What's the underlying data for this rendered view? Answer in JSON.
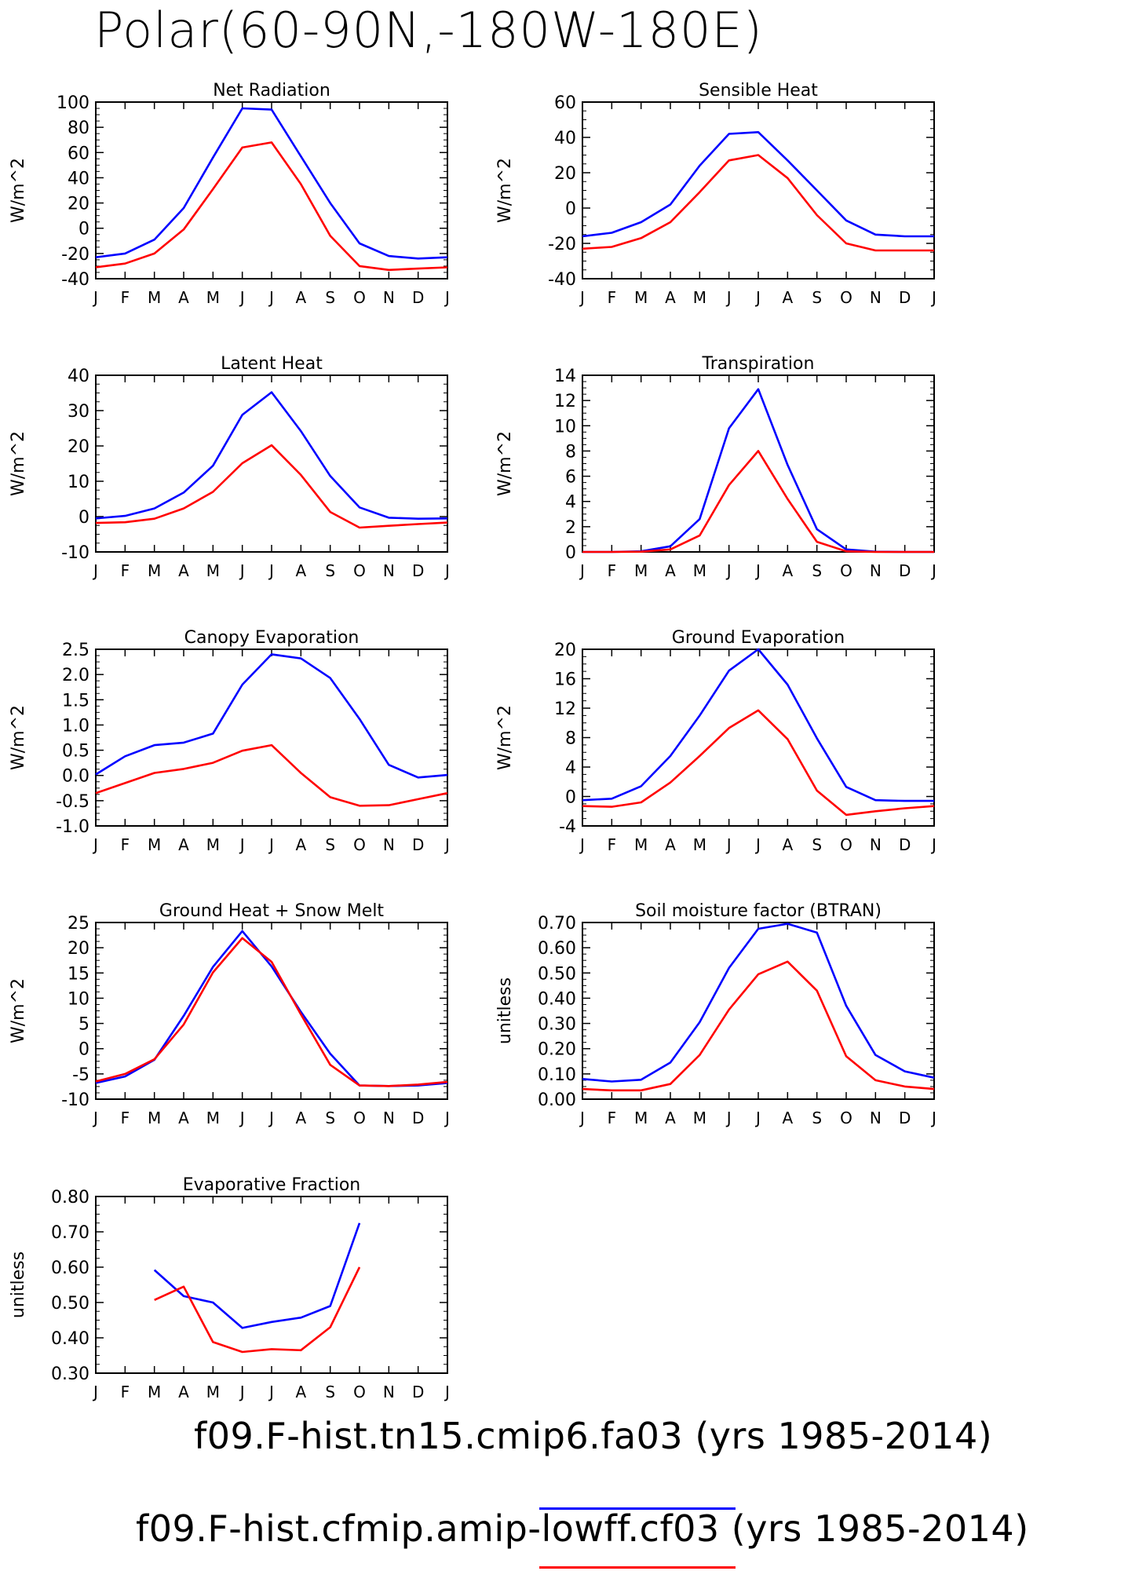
{
  "page_title": "Polar(60-90N,-180W-180E)",
  "colors": {
    "series1": "#0000ff",
    "series2": "#ff0000"
  },
  "legend": [
    {
      "label": "f09.F-hist.tn15.cmip6.fa03 (yrs 1985-2014)",
      "color": "#0000ff"
    },
    {
      "label": "f09.F-hist.cfmip.amip-lowff.cf03 (yrs 1985-2014)",
      "color": "#ff0000"
    }
  ],
  "chart_data": [
    {
      "type": "line",
      "title": "Net Radiation",
      "ylabel": "W/m^2",
      "categories": [
        "J",
        "F",
        "M",
        "A",
        "M",
        "J",
        "J",
        "A",
        "S",
        "O",
        "N",
        "D",
        "J"
      ],
      "ylim": [
        -40,
        100
      ],
      "yticks": [
        "-40",
        "-20",
        "0",
        "20",
        "40",
        "60",
        "80",
        "100"
      ],
      "yticks_values": [
        -40,
        -20,
        0,
        20,
        40,
        60,
        80,
        100
      ],
      "series": [
        {
          "values": [
            -23,
            -20,
            -9,
            16,
            56,
            95,
            94,
            57,
            20,
            -12,
            -22,
            -24,
            -23
          ]
        },
        {
          "values": [
            -31,
            -28,
            -20,
            -1,
            31,
            64,
            68,
            35,
            -6,
            -30,
            -33,
            -32,
            -31
          ]
        }
      ]
    },
    {
      "type": "line",
      "title": "Sensible Heat",
      "ylabel": "W/m^2",
      "categories": [
        "J",
        "F",
        "M",
        "A",
        "M",
        "J",
        "J",
        "A",
        "S",
        "O",
        "N",
        "D",
        "J"
      ],
      "ylim": [
        -40,
        60
      ],
      "yticks": [
        "-40",
        "-20",
        "0",
        "20",
        "40",
        "60"
      ],
      "yticks_values": [
        -40,
        -20,
        0,
        20,
        40,
        60
      ],
      "series": [
        {
          "values": [
            -16,
            -14,
            -8,
            2,
            24,
            42,
            43,
            27,
            10,
            -7,
            -15,
            -16,
            -16
          ]
        },
        {
          "values": [
            -23,
            -22,
            -17,
            -8,
            9,
            27,
            30,
            17,
            -4,
            -20,
            -24,
            -24,
            -24
          ]
        }
      ]
    },
    {
      "type": "line",
      "title": "Latent Heat",
      "ylabel": "W/m^2",
      "categories": [
        "J",
        "F",
        "M",
        "A",
        "M",
        "J",
        "J",
        "A",
        "S",
        "O",
        "N",
        "D",
        "J"
      ],
      "ylim": [
        -10,
        40
      ],
      "yticks": [
        "-10",
        "0",
        "10",
        "20",
        "30",
        "40"
      ],
      "yticks_values": [
        -10,
        0,
        10,
        20,
        30,
        40
      ],
      "series": [
        {
          "values": [
            -0.5,
            0.2,
            2.3,
            6.8,
            14.4,
            28.8,
            35.2,
            24.2,
            11.5,
            2.6,
            -0.3,
            -0.6,
            -0.5
          ]
        },
        {
          "values": [
            -1.8,
            -1.6,
            -0.6,
            2.3,
            7,
            15.1,
            20.2,
            11.8,
            1.3,
            -3.1,
            -2.6,
            -2.1,
            -1.7
          ]
        }
      ]
    },
    {
      "type": "line",
      "title": "Transpiration",
      "ylabel": "W/m^2",
      "categories": [
        "J",
        "F",
        "M",
        "A",
        "M",
        "J",
        "J",
        "A",
        "S",
        "O",
        "N",
        "D",
        "J"
      ],
      "ylim": [
        0,
        14
      ],
      "yticks": [
        "0",
        "2",
        "4",
        "6",
        "8",
        "10",
        "12",
        "14"
      ],
      "yticks_values": [
        0,
        2,
        4,
        6,
        8,
        10,
        12,
        14
      ],
      "series": [
        {
          "values": [
            0,
            0,
            0.05,
            0.45,
            2.6,
            9.8,
            12.9,
            6.9,
            1.8,
            0.2,
            0.02,
            0,
            0
          ]
        },
        {
          "values": [
            0,
            0,
            0.02,
            0.2,
            1.3,
            5.3,
            8,
            4.2,
            0.8,
            0.05,
            0,
            0,
            0
          ]
        }
      ]
    },
    {
      "type": "line",
      "title": "Canopy Evaporation",
      "ylabel": "W/m^2",
      "categories": [
        "J",
        "F",
        "M",
        "A",
        "M",
        "J",
        "J",
        "A",
        "S",
        "O",
        "N",
        "D",
        "J"
      ],
      "ylim": [
        -1.0,
        2.5
      ],
      "yticks": [
        "-1.0",
        "-0.5",
        "0.0",
        "0.5",
        "1.0",
        "1.5",
        "2.0",
        "2.5"
      ],
      "yticks_values": [
        -1.0,
        -0.5,
        0,
        0.5,
        1.0,
        1.5,
        2.0,
        2.5
      ],
      "series": [
        {
          "values": [
            0.02,
            0.38,
            0.6,
            0.65,
            0.83,
            1.8,
            2.4,
            2.32,
            1.93,
            1.12,
            0.21,
            -0.04,
            0.01
          ]
        },
        {
          "values": [
            -0.35,
            -0.15,
            0.05,
            0.13,
            0.25,
            0.49,
            0.6,
            0.05,
            -0.43,
            -0.6,
            -0.59,
            -0.47,
            -0.35
          ]
        }
      ]
    },
    {
      "type": "line",
      "title": "Ground Evaporation",
      "ylabel": "W/m^2",
      "categories": [
        "J",
        "F",
        "M",
        "A",
        "M",
        "J",
        "J",
        "A",
        "S",
        "O",
        "N",
        "D",
        "J"
      ],
      "ylim": [
        -4,
        20
      ],
      "yticks": [
        "-4",
        "0",
        "4",
        "8",
        "12",
        "16",
        "20"
      ],
      "yticks_values": [
        -4,
        0,
        4,
        8,
        12,
        16,
        20
      ],
      "series": [
        {
          "values": [
            -0.5,
            -0.3,
            1.4,
            5.5,
            11,
            17.1,
            20,
            15.2,
            7.9,
            1.3,
            -0.5,
            -0.6,
            -0.6
          ]
        },
        {
          "values": [
            -1.3,
            -1.4,
            -0.8,
            1.9,
            5.5,
            9.3,
            11.7,
            7.8,
            0.8,
            -2.5,
            -2,
            -1.6,
            -1.3
          ]
        }
      ]
    },
    {
      "type": "line",
      "title": "Ground Heat + Snow Melt",
      "ylabel": "W/m^2",
      "categories": [
        "J",
        "F",
        "M",
        "A",
        "M",
        "J",
        "J",
        "A",
        "S",
        "O",
        "N",
        "D",
        "J"
      ],
      "ylim": [
        -10,
        25
      ],
      "yticks": [
        "-10",
        "-5",
        "0",
        "5",
        "10",
        "15",
        "20",
        "25"
      ],
      "yticks_values": [
        -10,
        -5,
        0,
        5,
        10,
        15,
        20,
        25
      ],
      "series": [
        {
          "values": [
            -6.8,
            -5.5,
            -2.2,
            6.5,
            16.2,
            23.3,
            16.3,
            7.3,
            -1,
            -7.3,
            -7.4,
            -7.3,
            -6.8
          ]
        },
        {
          "values": [
            -6.5,
            -5,
            -2.1,
            4.8,
            15.1,
            21.9,
            17.2,
            6.8,
            -3.2,
            -7.3,
            -7.4,
            -7.1,
            -6.6
          ]
        }
      ]
    },
    {
      "type": "line",
      "title": "Soil moisture factor (BTRAN)",
      "ylabel": "unitless",
      "categories": [
        "J",
        "F",
        "M",
        "A",
        "M",
        "J",
        "J",
        "A",
        "S",
        "O",
        "N",
        "D",
        "J"
      ],
      "ylim": [
        0,
        0.7
      ],
      "yticks": [
        "0.00",
        "0.10",
        "0.20",
        "0.30",
        "0.40",
        "0.50",
        "0.60",
        "0.70"
      ],
      "yticks_values": [
        0,
        0.1,
        0.2,
        0.3,
        0.4,
        0.5,
        0.6,
        0.7
      ],
      "series": [
        {
          "values": [
            0.08,
            0.07,
            0.077,
            0.145,
            0.305,
            0.52,
            0.675,
            0.695,
            0.66,
            0.37,
            0.175,
            0.11,
            0.085
          ]
        },
        {
          "values": [
            0.04,
            0.035,
            0.035,
            0.06,
            0.175,
            0.355,
            0.495,
            0.545,
            0.43,
            0.17,
            0.075,
            0.05,
            0.04
          ]
        }
      ]
    },
    {
      "type": "line",
      "title": "Evaporative Fraction",
      "ylabel": "unitless",
      "categories": [
        "J",
        "F",
        "M",
        "A",
        "M",
        "J",
        "J",
        "A",
        "S",
        "O",
        "N",
        "D",
        "J"
      ],
      "ylim": [
        0.3,
        0.8
      ],
      "yticks": [
        "0.30",
        "0.40",
        "0.50",
        "0.60",
        "0.70",
        "0.80"
      ],
      "yticks_values": [
        0.3,
        0.4,
        0.5,
        0.6,
        0.7,
        0.8
      ],
      "series": [
        {
          "values": [
            null,
            null,
            0.592,
            0.518,
            0.5,
            0.428,
            0.445,
            0.457,
            0.49,
            0.725,
            null,
            null,
            null
          ]
        },
        {
          "values": [
            null,
            null,
            0.507,
            0.545,
            0.388,
            0.36,
            0.368,
            0.365,
            0.43,
            0.6,
            null,
            null,
            null
          ]
        }
      ]
    }
  ]
}
